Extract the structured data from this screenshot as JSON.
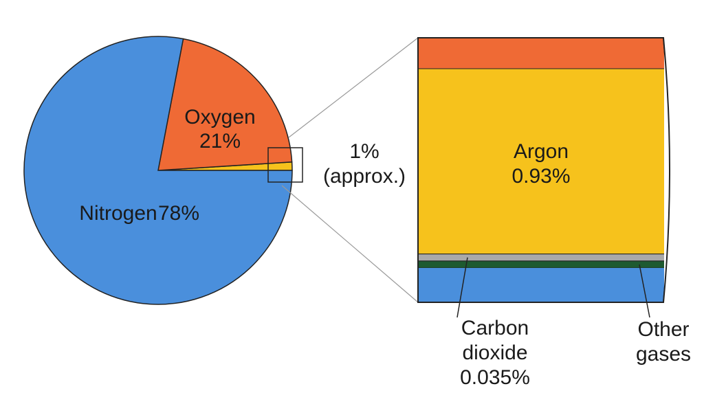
{
  "chart_data": [
    {
      "type": "pie",
      "categories": [
        "Nitrogen",
        "Oxygen",
        null
      ],
      "values": [
        78,
        21,
        1
      ],
      "value_labels": [
        "78%",
        "21%",
        "1%"
      ],
      "colors": [
        "#4a8fdc",
        "#ef6a35",
        "#f6c21c"
      ],
      "annotation": "(approx.)"
    },
    {
      "type": "zoom-stack",
      "categories": [
        "Argon",
        "Carbon dioxide",
        "Other gases"
      ],
      "values": [
        0.93,
        0.035,
        0.035
      ],
      "value_labels": [
        "0.93%",
        "0.035%",
        null
      ],
      "colors": [
        "#f6c21c",
        "#a9a9a9",
        "#1e5a30"
      ]
    }
  ]
}
